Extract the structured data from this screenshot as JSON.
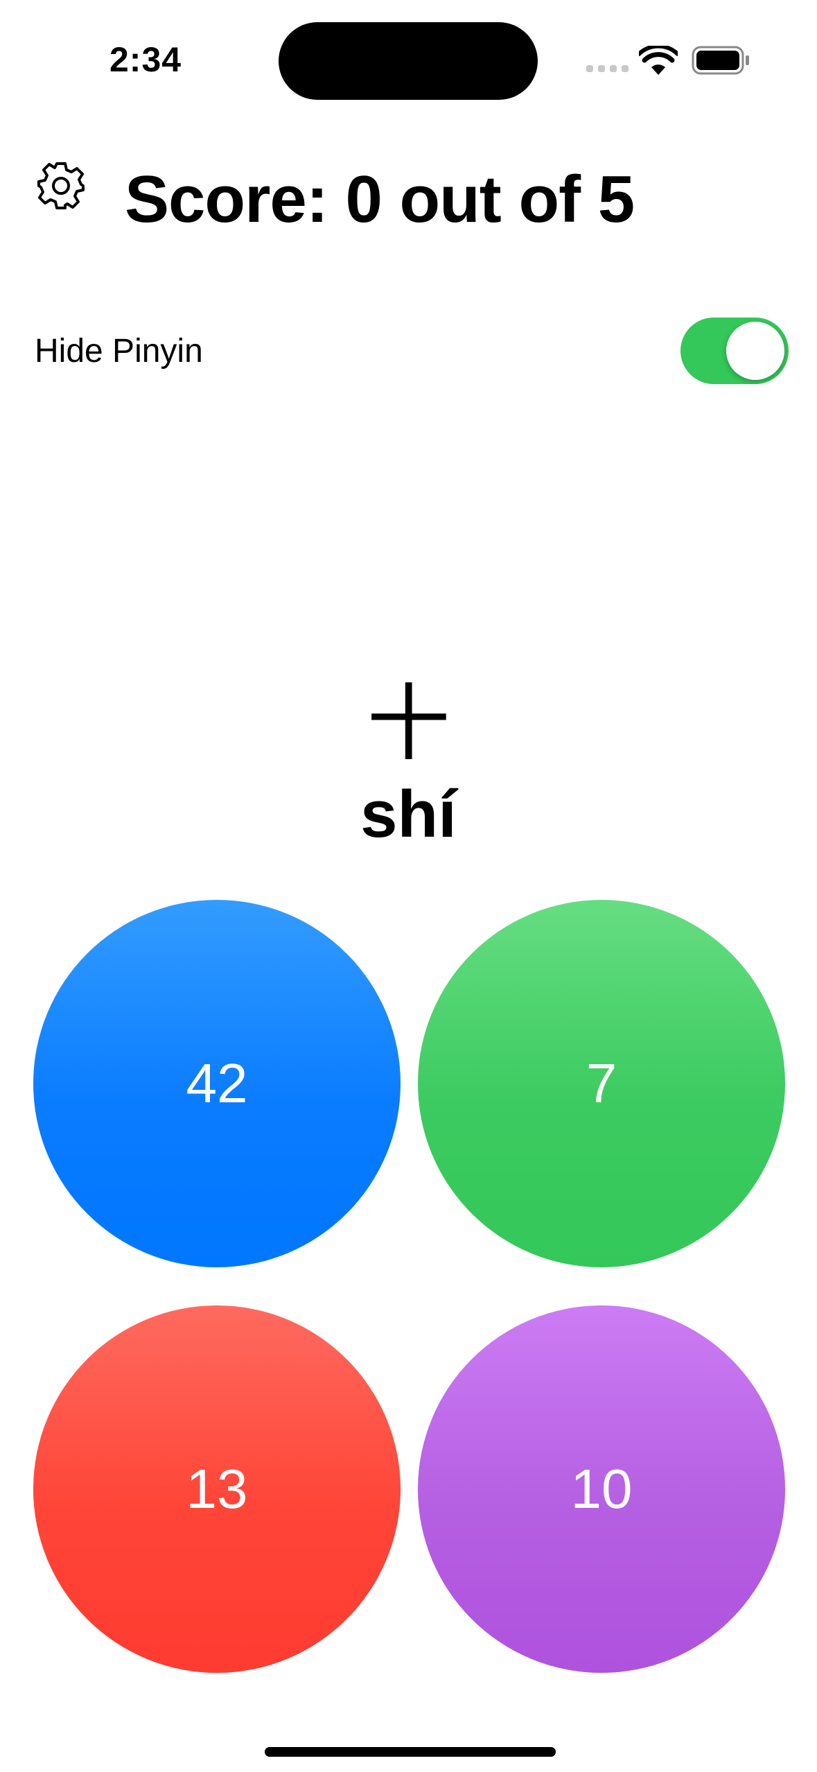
{
  "status_bar": {
    "time": "2:34",
    "icons": [
      "cellular-signal-icon",
      "wifi-icon",
      "battery-icon"
    ]
  },
  "header": {
    "settings_icon": "gear-icon",
    "score_text": "Score: 0 out of 5"
  },
  "pinyin_toggle": {
    "label": "Hide Pinyin",
    "on": true,
    "color": "#34c759"
  },
  "question": {
    "character": "十",
    "pinyin": "shí"
  },
  "answers": [
    {
      "label": "42",
      "color": "#0077ff"
    },
    {
      "label": "7",
      "color": "#34c759"
    },
    {
      "label": "13",
      "color": "#ff3b30"
    },
    {
      "label": "10",
      "color": "#af52de"
    }
  ]
}
